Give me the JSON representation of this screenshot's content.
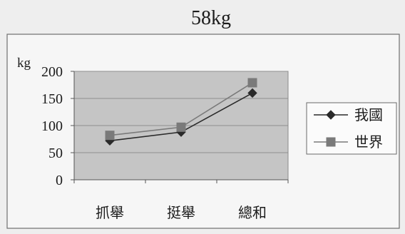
{
  "chart_data": {
    "type": "line",
    "title": "58kg",
    "ylabel": "kg",
    "categories": [
      "抓舉",
      "挺舉",
      "總和"
    ],
    "ylim": [
      0,
      200
    ],
    "yticks": [
      0,
      50,
      100,
      150,
      200
    ],
    "grid": true,
    "legend_position": "right",
    "series": [
      {
        "name": "我國",
        "values": [
          72,
          88,
          160
        ],
        "marker": "diamond",
        "color": "#2a2a2a"
      },
      {
        "name": "世界",
        "values": [
          82,
          97,
          179
        ],
        "marker": "square",
        "color": "#7a7a7a"
      }
    ]
  }
}
